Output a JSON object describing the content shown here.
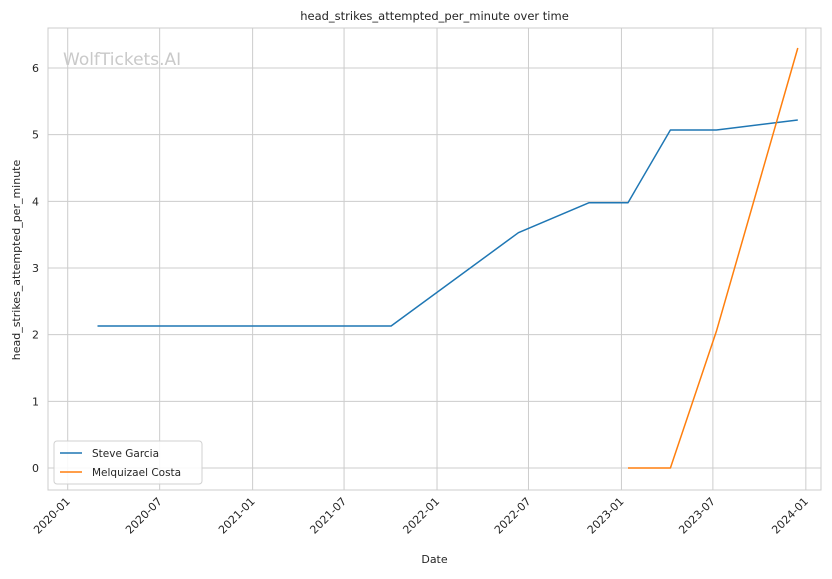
{
  "chart_data": {
    "type": "line",
    "title": "head_strikes_attempted_per_minute over time",
    "xlabel": "Date",
    "ylabel": "head_strikes_attempted_per_minute",
    "watermark": "WolfTickets.AI",
    "x_ticks": [
      "2020-01",
      "2020-07",
      "2021-01",
      "2021-07",
      "2022-01",
      "2022-07",
      "2023-01",
      "2023-07",
      "2024-01"
    ],
    "y_ticks": [
      0,
      1,
      2,
      3,
      4,
      5,
      6
    ],
    "ylim": [
      -0.33,
      6.6
    ],
    "xlim": [
      "2019-11-23",
      "2024-01-31"
    ],
    "grid": true,
    "legend_position": "lower-left",
    "series": [
      {
        "name": "Steve Garcia",
        "color": "#1f77b4",
        "points": [
          {
            "x": "2020-02-29",
            "y": 2.13
          },
          {
            "x": "2021-10-02",
            "y": 2.13
          },
          {
            "x": "2022-06-11",
            "y": 3.53
          },
          {
            "x": "2022-10-29",
            "y": 3.98
          },
          {
            "x": "2023-01-14",
            "y": 3.98
          },
          {
            "x": "2023-04-08",
            "y": 5.07
          },
          {
            "x": "2023-07-08",
            "y": 5.07
          },
          {
            "x": "2023-12-16",
            "y": 5.22
          }
        ]
      },
      {
        "name": "Melquizael Costa",
        "color": "#ff7f0e",
        "points": [
          {
            "x": "2023-01-14",
            "y": 0.0
          },
          {
            "x": "2023-04-08",
            "y": 0.0
          },
          {
            "x": "2023-07-08",
            "y": 2.05
          },
          {
            "x": "2023-12-16",
            "y": 6.3
          }
        ]
      }
    ]
  }
}
